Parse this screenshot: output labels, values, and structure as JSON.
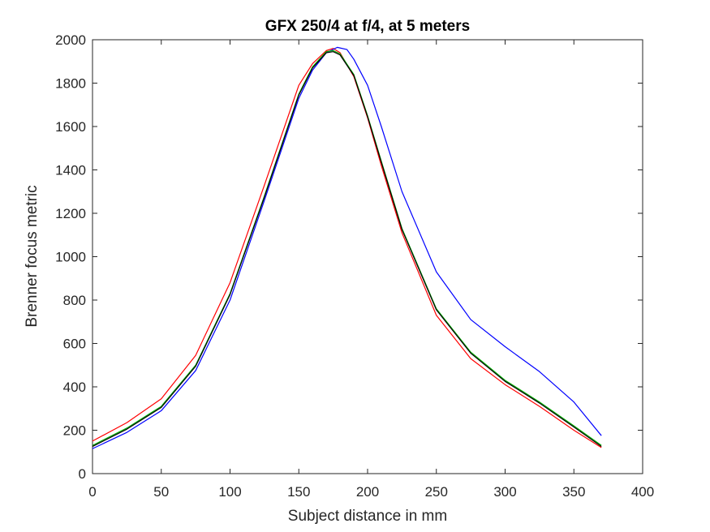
{
  "chart_data": {
    "type": "line",
    "title": "GFX 250/4 at f/4, at 5 meters",
    "xlabel": "Subject distance in mm",
    "ylabel": "Brenner focus metric",
    "xlim": [
      0,
      400
    ],
    "ylim": [
      0,
      2000
    ],
    "xticks": [
      "0",
      "50",
      "100",
      "150",
      "200",
      "250",
      "300",
      "350",
      "400"
    ],
    "yticks": [
      "0",
      "200",
      "400",
      "600",
      "800",
      "1000",
      "1200",
      "1400",
      "1600",
      "1800",
      "2000"
    ],
    "grid": false,
    "legend": "none",
    "series": [
      {
        "color": "#ff0000",
        "x": [
          0,
          25,
          50,
          75,
          100,
          125,
          150,
          160,
          170,
          175,
          180,
          190,
          200,
          210,
          225,
          250,
          275,
          300,
          325,
          350,
          370
        ],
        "y": [
          150,
          235,
          345,
          545,
          880,
          1330,
          1790,
          1890,
          1950,
          1960,
          1940,
          1830,
          1640,
          1420,
          1110,
          730,
          530,
          410,
          310,
          200,
          120
        ]
      },
      {
        "color": "#0000ff",
        "x": [
          0,
          25,
          50,
          75,
          100,
          125,
          150,
          160,
          170,
          178,
          185,
          190,
          200,
          210,
          225,
          250,
          275,
          300,
          325,
          350,
          370
        ],
        "y": [
          115,
          190,
          290,
          475,
          800,
          1260,
          1730,
          1860,
          1940,
          1965,
          1955,
          1910,
          1790,
          1600,
          1300,
          930,
          710,
          585,
          470,
          330,
          175
        ]
      },
      {
        "color": "#00b000",
        "x": [
          0,
          25,
          50,
          75,
          100,
          125,
          150,
          160,
          170,
          175,
          180,
          190,
          200,
          210,
          225,
          250,
          275,
          300,
          325,
          350,
          370
        ],
        "y": [
          130,
          210,
          310,
          500,
          830,
          1280,
          1750,
          1875,
          1945,
          1950,
          1935,
          1840,
          1650,
          1440,
          1130,
          760,
          560,
          430,
          330,
          220,
          130
        ]
      },
      {
        "color": "#000000",
        "x": [
          0,
          25,
          50,
          75,
          100,
          125,
          150,
          160,
          170,
          175,
          180,
          190,
          200,
          210,
          225,
          250,
          275,
          300,
          325,
          350,
          370
        ],
        "y": [
          125,
          205,
          305,
          495,
          825,
          1275,
          1745,
          1870,
          1940,
          1945,
          1930,
          1835,
          1645,
          1435,
          1125,
          755,
          555,
          425,
          325,
          215,
          125
        ]
      }
    ]
  }
}
